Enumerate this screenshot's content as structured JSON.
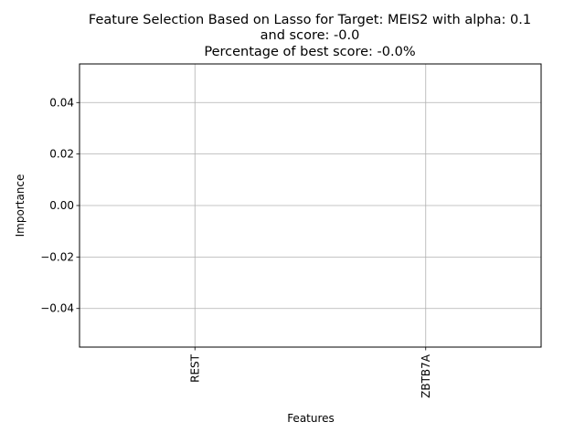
{
  "chart_data": {
    "type": "bar",
    "title_lines": [
      "Feature Selection Based on Lasso for Target: MEIS2 with alpha: 0.1",
      "and score: -0.0",
      "Percentage of best score: -0.0%"
    ],
    "xlabel": "Features",
    "ylabel": "Importance",
    "categories": [
      "REST",
      "ZBTB7A"
    ],
    "values": [
      0.0,
      0.0
    ],
    "xlim": [
      -0.5,
      1.5
    ],
    "ylim": [
      -0.055,
      0.055
    ],
    "yticks": [
      -0.04,
      -0.02,
      0.0,
      0.02,
      0.04
    ],
    "ytick_labels": [
      "−0.04",
      "−0.02",
      "0.00",
      "0.02",
      "0.04"
    ],
    "grid": true,
    "colors": {
      "grid": "#b0b0b0",
      "axes": "#000000",
      "bar": "#1f77b4"
    }
  }
}
